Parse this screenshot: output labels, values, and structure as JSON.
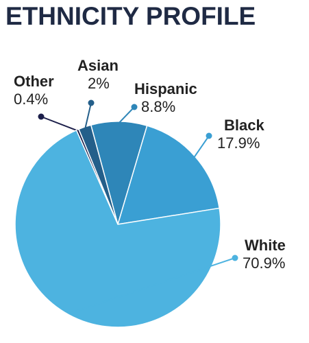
{
  "chart_data": {
    "type": "pie",
    "title": "ETHNICITY PROFILE",
    "categories": [
      "Other",
      "Asian",
      "Hispanic",
      "Black",
      "White"
    ],
    "values": [
      0.4,
      2,
      8.8,
      17.9,
      70.9
    ],
    "value_labels": [
      "0.4%",
      "2%",
      "8.8%",
      "17.9%",
      "70.9%"
    ],
    "colors": [
      "#1c1f4a",
      "#245f8a",
      "#2e86b8",
      "#3a9fd3",
      "#4db3e0"
    ]
  }
}
